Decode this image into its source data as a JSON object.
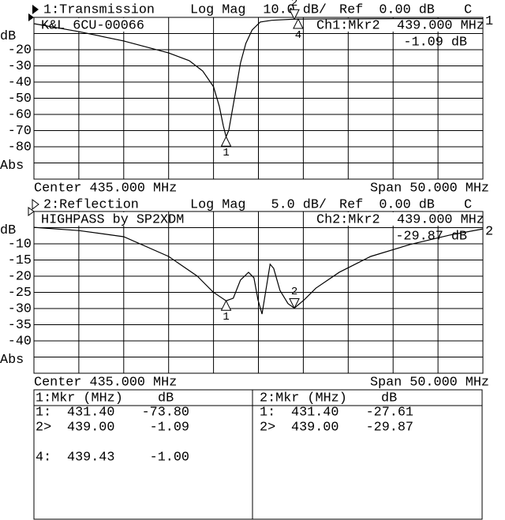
{
  "chart_data": [
    {
      "type": "line",
      "title": "1:Transmission",
      "format": "Log Mag",
      "scale": "10.0 dB/",
      "ref": "Ref  0.00 dB",
      "channel": "C",
      "annotation": "K&L 6CU-00066",
      "readout_channel": "Ch1:Mkr2",
      "readout_freq": "439.000 MHz",
      "readout_value": "-1.09 dB",
      "center": "Center 435.000 MHz",
      "span": "Span 50.000 MHz",
      "trace_number": "1",
      "color": "#000000",
      "grid": true,
      "xlim": [
        410,
        460
      ],
      "xticks": [
        415,
        420,
        425,
        430,
        435,
        440,
        445,
        450,
        455
      ],
      "ylim": [
        -100,
        0
      ],
      "yticks": [
        {
          "value": -10,
          "label": "dB"
        },
        -20,
        -30,
        -40,
        -50,
        -60,
        -70,
        -80,
        {
          "value": -90,
          "label": "Abs"
        }
      ],
      "x": [
        410,
        415,
        420,
        425,
        427.3,
        428.8,
        430,
        430.65,
        431.1,
        431.4,
        431.7,
        432.4,
        433,
        433.6,
        434.3,
        435.2,
        436.5,
        439,
        441.4,
        445.8,
        450,
        460
      ],
      "values": [
        -3.9,
        -8.8,
        -14.6,
        -22,
        -26.8,
        -33.2,
        -42.9,
        -55.1,
        -67.3,
        -73.8,
        -69.8,
        -47.8,
        -28.3,
        -16.1,
        -7.8,
        -2.9,
        -1.8,
        -1.09,
        -1.0,
        -0.9,
        -0.8,
        -0.8
      ],
      "markers": [
        {
          "label": "1",
          "x": 431.4,
          "y": -73.8,
          "dir": "up"
        },
        {
          "label": "2",
          "x": 439.0,
          "y": -1.09,
          "dir": "down"
        },
        {
          "label": "4",
          "x": 439.43,
          "y": -1.0,
          "dir": "up"
        }
      ]
    },
    {
      "type": "line",
      "title": "2:Reflection",
      "format": "Log Mag",
      "scale": "5.0 dB/",
      "ref": "Ref  0.00 dB",
      "channel": "C",
      "annotation": "HIGHPASS by SP2XDM",
      "readout_channel": "Ch2:Mkr2",
      "readout_freq": "439.000 MHz",
      "readout_value": "-29.87 dB",
      "center": "Center 435.000 MHz",
      "span": "Span 50.000 MHz",
      "trace_number": "2",
      "color": "#000000",
      "grid": true,
      "xlim": [
        410,
        460
      ],
      "xticks": [
        415,
        420,
        425,
        430,
        435,
        440,
        445,
        450,
        455
      ],
      "ylim": [
        -50,
        0
      ],
      "yticks": [
        {
          "value": -5,
          "label": "dB"
        },
        -10,
        -15,
        -20,
        -25,
        -30,
        -35,
        -40,
        {
          "value": -45,
          "label": "Abs"
        }
      ],
      "x": [
        410,
        415,
        420,
        425,
        428.2,
        429.95,
        431.4,
        432.2,
        433,
        433.9,
        434.5,
        434.95,
        435.4,
        435.8,
        436.3,
        436.7,
        437.4,
        438.3,
        439,
        440.1,
        441.4,
        444,
        447.5,
        451.9,
        456.3,
        460
      ],
      "values": [
        -4.9,
        -5.9,
        -7.8,
        -13.9,
        -20,
        -24.9,
        -27.61,
        -26.8,
        -21.2,
        -18.8,
        -20.5,
        -27.3,
        -31.7,
        -24.9,
        -16.3,
        -17.6,
        -24.4,
        -28.5,
        -29.87,
        -27.3,
        -23.7,
        -18.8,
        -13.9,
        -10.2,
        -7.3,
        -5.4
      ],
      "markers": [
        {
          "label": "1",
          "x": 431.4,
          "y": -27.61,
          "dir": "up"
        },
        {
          "label": "2",
          "x": 439.0,
          "y": -29.87,
          "dir": "down"
        }
      ]
    }
  ],
  "marker_table": [
    {
      "header": "1:Mkr (MHz)",
      "unit": "dB",
      "rows": [
        [
          "1:",
          "431.40",
          "-73.80"
        ],
        [
          "2>",
          "439.00",
          "-1.09"
        ],
        [
          "4:",
          "439.43",
          "-1.00"
        ]
      ]
    },
    {
      "header": "2:Mkr (MHz)",
      "unit": "dB",
      "rows": [
        [
          "1:",
          "431.40",
          "-27.61"
        ],
        [
          "2>",
          "439.00",
          "-29.87"
        ]
      ]
    }
  ]
}
